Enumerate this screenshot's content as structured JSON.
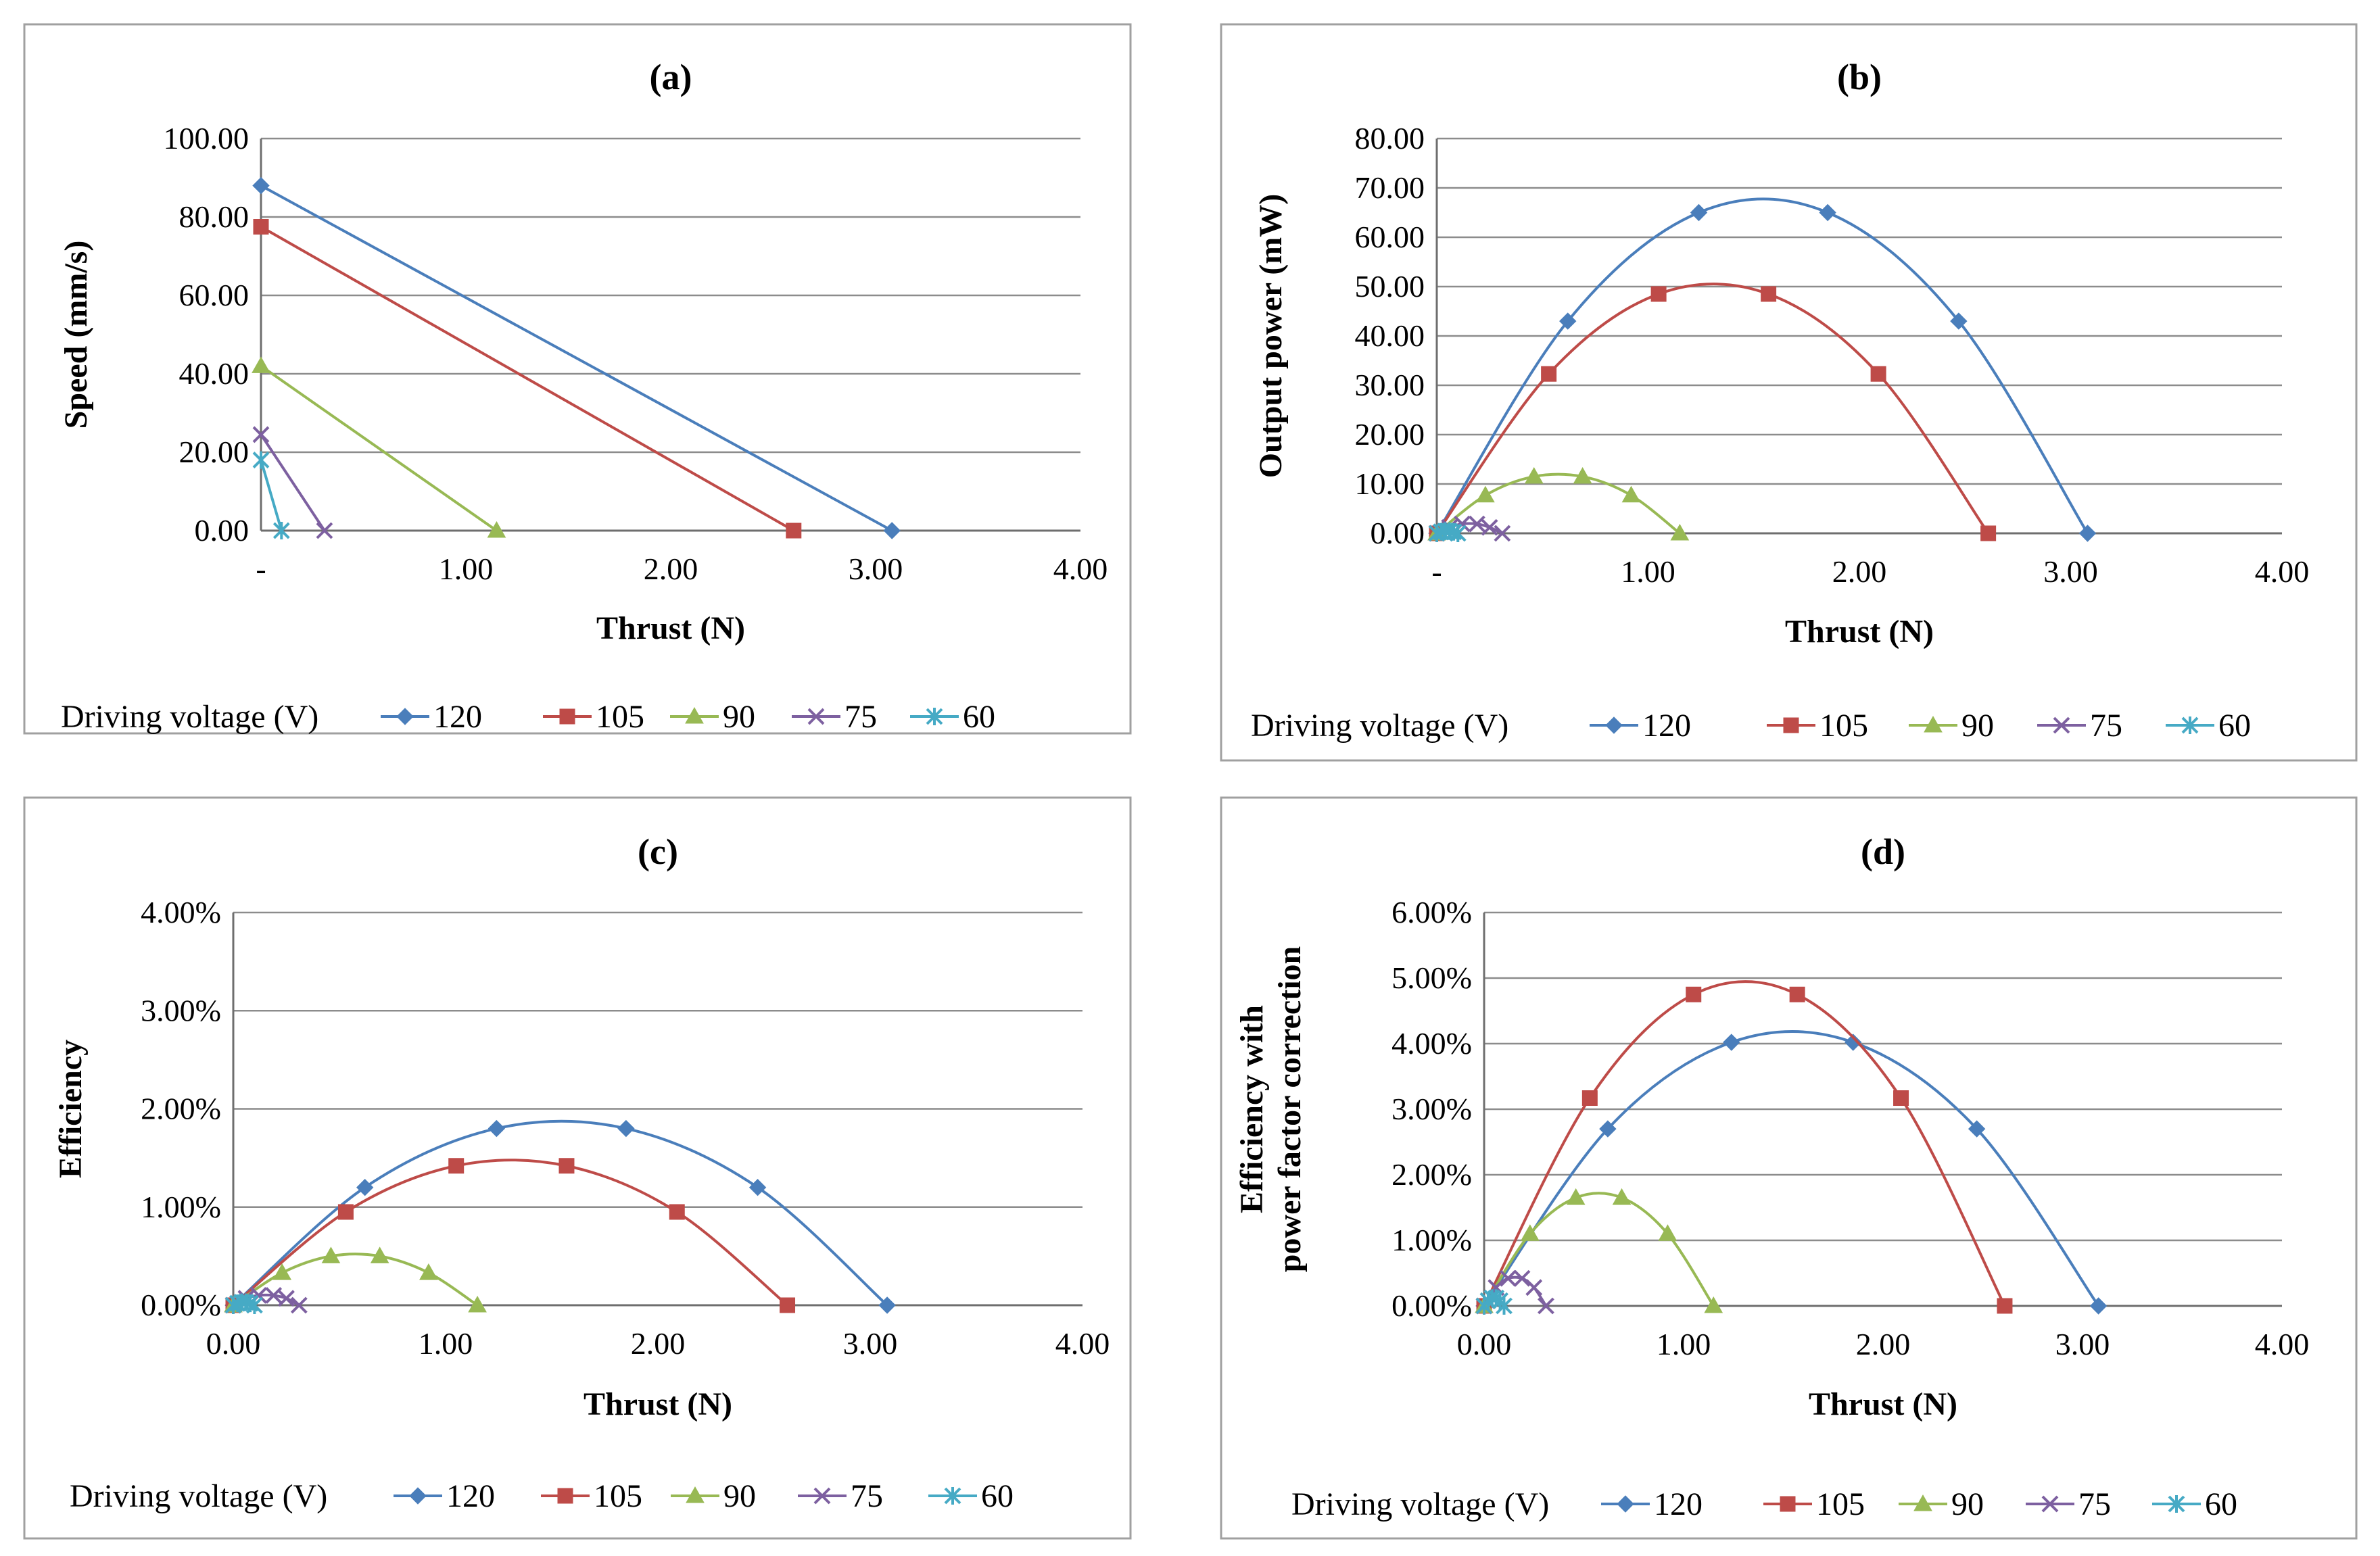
{
  "series_defs": [
    {
      "name": "120",
      "color": "#4a7ebb",
      "marker": "diamond"
    },
    {
      "name": "105",
      "color": "#be4b48",
      "marker": "square"
    },
    {
      "name": "90",
      "color": "#98b954",
      "marker": "triangle"
    },
    {
      "name": "75",
      "color": "#7d60a0",
      "marker": "x"
    },
    {
      "name": "60",
      "color": "#46aac5",
      "marker": "star"
    }
  ],
  "legend_title": "Driving voltage (V)",
  "chart_data": [
    {
      "id": "a",
      "type": "line",
      "title": "(a)",
      "xlabel": "Thrust (N)",
      "ylabel": [
        "Speed (mm/s)"
      ],
      "xlim": [
        0,
        4
      ],
      "ylim": [
        0,
        100
      ],
      "xticks": [
        "-",
        "1.00",
        "2.00",
        "3.00",
        "4.00"
      ],
      "yticks": [
        "0.00",
        "20.00",
        "40.00",
        "60.00",
        "80.00",
        "100.00"
      ],
      "smooth": false,
      "series": [
        {
          "name": "120",
          "x": [
            0.0,
            3.08
          ],
          "y": [
            88,
            0
          ]
        },
        {
          "name": "105",
          "x": [
            0.0,
            2.6
          ],
          "y": [
            77.5,
            0
          ]
        },
        {
          "name": "90",
          "x": [
            0.0,
            1.15
          ],
          "y": [
            42,
            0
          ]
        },
        {
          "name": "75",
          "x": [
            0.0,
            0.31
          ],
          "y": [
            24.5,
            0
          ]
        },
        {
          "name": "60",
          "x": [
            0.0,
            0.1
          ],
          "y": [
            18,
            0
          ]
        }
      ]
    },
    {
      "id": "b",
      "type": "line",
      "title": "(b)",
      "xlabel": "Thrust (N)",
      "ylabel": [
        "Output power (mW)"
      ],
      "xlim": [
        0,
        4
      ],
      "ylim": [
        0,
        80
      ],
      "xticks": [
        "-",
        "1.00",
        "2.00",
        "3.00",
        "4.00"
      ],
      "yticks": [
        "0.00",
        "10.00",
        "20.00",
        "30.00",
        "40.00",
        "50.00",
        "60.00",
        "70.00",
        "80.00"
      ],
      "smooth": true,
      "series": [
        {
          "name": "120",
          "x": [
            0.0,
            0.62,
            1.24,
            1.85,
            2.47,
            3.08
          ],
          "y": [
            0,
            43,
            65,
            65,
            43,
            0
          ]
        },
        {
          "name": "105",
          "x": [
            0.0,
            0.53,
            1.05,
            1.57,
            2.09,
            2.61
          ],
          "y": [
            0,
            32.3,
            48.5,
            48.5,
            32.3,
            0
          ]
        },
        {
          "name": "90",
          "x": [
            0.0,
            0.23,
            0.46,
            0.69,
            0.92,
            1.15
          ],
          "y": [
            0,
            7.7,
            11.5,
            11.5,
            7.7,
            0
          ]
        },
        {
          "name": "75",
          "x": [
            0.0,
            0.06,
            0.12,
            0.19,
            0.25,
            0.31
          ],
          "y": [
            0,
            1.2,
            1.9,
            1.9,
            1.2,
            0
          ]
        },
        {
          "name": "60",
          "x": [
            0.0,
            0.02,
            0.04,
            0.06,
            0.08,
            0.1
          ],
          "y": [
            0,
            0.3,
            0.45,
            0.45,
            0.3,
            0
          ]
        }
      ]
    },
    {
      "id": "c",
      "type": "line",
      "title": "(c)",
      "xlabel": "Thrust (N)",
      "ylabel": [
        "Efficiency"
      ],
      "xlim": [
        0,
        4
      ],
      "ylim": [
        0,
        4
      ],
      "xticks": [
        "0.00",
        "1.00",
        "2.00",
        "3.00",
        "4.00"
      ],
      "yticks": [
        "0.00%",
        "1.00%",
        "2.00%",
        "3.00%",
        "4.00%"
      ],
      "smooth": true,
      "series": [
        {
          "name": "120",
          "x": [
            0.0,
            0.62,
            1.24,
            1.85,
            2.47,
            3.08
          ],
          "y": [
            0,
            1.2,
            1.8,
            1.8,
            1.2,
            0
          ]
        },
        {
          "name": "105",
          "x": [
            0.0,
            0.53,
            1.05,
            1.57,
            2.09,
            2.61
          ],
          "y": [
            0,
            0.95,
            1.42,
            1.42,
            0.95,
            0
          ]
        },
        {
          "name": "90",
          "x": [
            0.0,
            0.23,
            0.46,
            0.69,
            0.92,
            1.15
          ],
          "y": [
            0,
            0.33,
            0.5,
            0.5,
            0.33,
            0
          ]
        },
        {
          "name": "75",
          "x": [
            0.0,
            0.06,
            0.12,
            0.19,
            0.25,
            0.31
          ],
          "y": [
            0,
            0.07,
            0.1,
            0.1,
            0.07,
            0
          ]
        },
        {
          "name": "60",
          "x": [
            0.0,
            0.02,
            0.04,
            0.06,
            0.08,
            0.1
          ],
          "y": [
            0,
            0.02,
            0.03,
            0.03,
            0.02,
            0
          ]
        }
      ]
    },
    {
      "id": "d",
      "type": "line",
      "title": "(d)",
      "xlabel": "Thrust (N)",
      "ylabel": [
        "Efficiency with",
        "power factor correction"
      ],
      "xlim": [
        0,
        4
      ],
      "ylim": [
        0,
        6
      ],
      "xticks": [
        "0.00",
        "1.00",
        "2.00",
        "3.00",
        "4.00"
      ],
      "yticks": [
        "0.00%",
        "1.00%",
        "2.00%",
        "3.00%",
        "4.00%",
        "5.00%",
        "6.00%"
      ],
      "smooth": true,
      "series": [
        {
          "name": "120",
          "x": [
            0.0,
            0.62,
            1.24,
            1.85,
            2.47,
            3.08
          ],
          "y": [
            0,
            2.7,
            4.02,
            4.02,
            2.7,
            0
          ]
        },
        {
          "name": "105",
          "x": [
            0.0,
            0.53,
            1.05,
            1.57,
            2.09,
            2.61
          ],
          "y": [
            0,
            3.17,
            4.75,
            4.75,
            3.17,
            0
          ]
        },
        {
          "name": "90",
          "x": [
            0.0,
            0.23,
            0.46,
            0.69,
            0.92,
            1.15
          ],
          "y": [
            0,
            1.1,
            1.65,
            1.65,
            1.1,
            0
          ]
        },
        {
          "name": "75",
          "x": [
            0.0,
            0.06,
            0.12,
            0.19,
            0.25,
            0.31
          ],
          "y": [
            0,
            0.28,
            0.42,
            0.42,
            0.28,
            0
          ]
        },
        {
          "name": "60",
          "x": [
            0.0,
            0.02,
            0.04,
            0.06,
            0.08,
            0.1
          ],
          "y": [
            0,
            0.08,
            0.12,
            0.12,
            0.08,
            0
          ]
        }
      ]
    }
  ]
}
